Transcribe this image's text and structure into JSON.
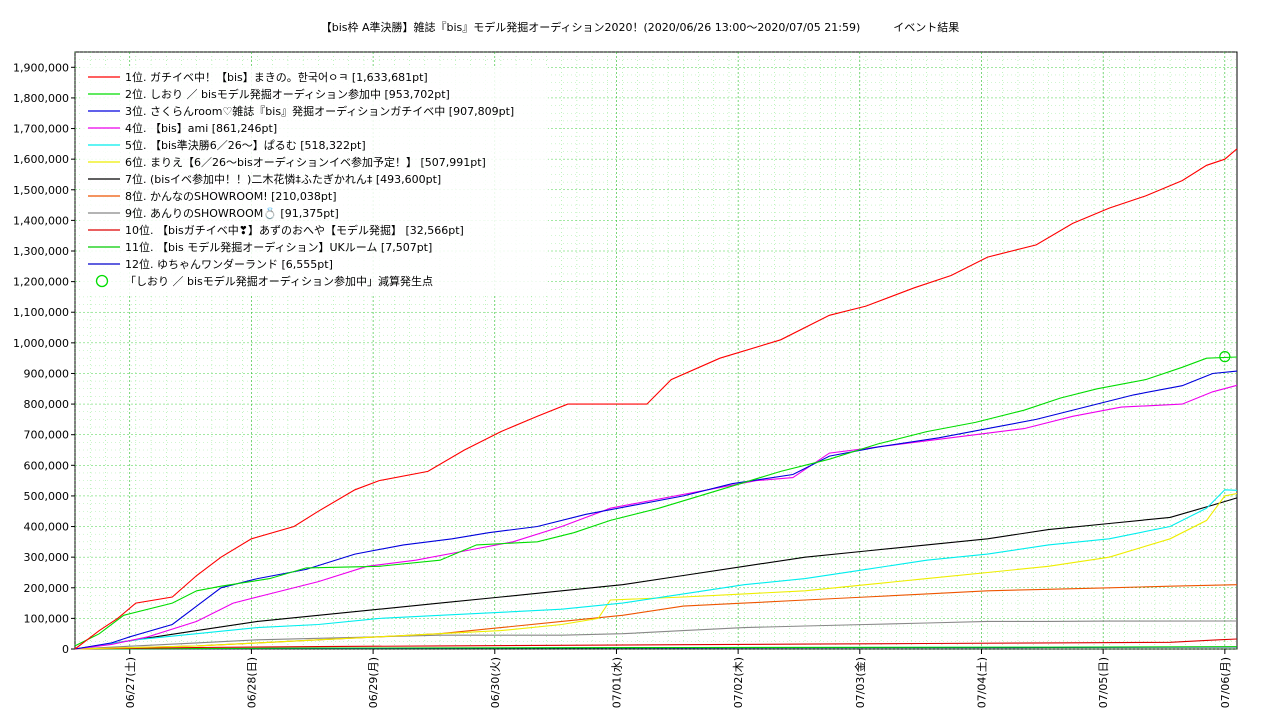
{
  "chart_title": "【bis枠 A準決勝】雑誌『bis』モデル発掘オーディション2020！(2020/06/26 13:00〜2020/07/05 21:59)　　　イベント結果",
  "chart_data": {
    "type": "line",
    "title": "【bis枠 A準決勝】雑誌『bis』モデル発掘オーディション2020！(2020/06/26 13:00〜2020/07/05 21:59)　　　イベント結果",
    "xlabel": "",
    "ylabel": "",
    "ylim": [
      0,
      1950000
    ],
    "xlim": [
      0,
      9.55
    ],
    "grid": true,
    "legend_position": "top-left",
    "y_ticks": [
      "0",
      "100,000",
      "200,000",
      "300,000",
      "400,000",
      "500,000",
      "600,000",
      "700,000",
      "800,000",
      "900,000",
      "1,000,000",
      "1,100,000",
      "1,200,000",
      "1,300,000",
      "1,400,000",
      "1,500,000",
      "1,600,000",
      "1,700,000",
      "1,800,000",
      "1,900,000"
    ],
    "x_ticks": [
      {
        "x": 0.45,
        "label": "06/27(土)"
      },
      {
        "x": 1.45,
        "label": "06/28(日)"
      },
      {
        "x": 2.45,
        "label": "06/29(月)"
      },
      {
        "x": 3.45,
        "label": "06/30(火)"
      },
      {
        "x": 4.45,
        "label": "07/01(水)"
      },
      {
        "x": 5.45,
        "label": "07/02(木)"
      },
      {
        "x": 6.45,
        "label": "07/03(金)"
      },
      {
        "x": 7.45,
        "label": "07/04(土)"
      },
      {
        "x": 8.45,
        "label": "07/05(日)"
      },
      {
        "x": 9.45,
        "label": "07/06(月)"
      }
    ],
    "series": [
      {
        "name": "1位. ガチイベ中！【bis】まきの。한국어ㅇㅋ [1,633,681pt]",
        "color": "#ff0000",
        "points": [
          [
            0,
            0
          ],
          [
            0.2,
            60000
          ],
          [
            0.35,
            100000
          ],
          [
            0.5,
            150000
          ],
          [
            0.8,
            170000
          ],
          [
            1.0,
            240000
          ],
          [
            1.2,
            300000
          ],
          [
            1.45,
            360000
          ],
          [
            1.8,
            400000
          ],
          [
            2.0,
            450000
          ],
          [
            2.3,
            520000
          ],
          [
            2.5,
            550000
          ],
          [
            2.9,
            580000
          ],
          [
            3.2,
            650000
          ],
          [
            3.5,
            710000
          ],
          [
            3.8,
            760000
          ],
          [
            4.05,
            800000
          ],
          [
            4.7,
            800000
          ],
          [
            4.9,
            880000
          ],
          [
            5.3,
            950000
          ],
          [
            5.8,
            1010000
          ],
          [
            6.2,
            1090000
          ],
          [
            6.5,
            1120000
          ],
          [
            6.9,
            1180000
          ],
          [
            7.2,
            1220000
          ],
          [
            7.5,
            1280000
          ],
          [
            7.9,
            1320000
          ],
          [
            8.2,
            1390000
          ],
          [
            8.5,
            1440000
          ],
          [
            8.8,
            1480000
          ],
          [
            9.1,
            1530000
          ],
          [
            9.3,
            1580000
          ],
          [
            9.45,
            1600000
          ],
          [
            9.55,
            1633681
          ]
        ]
      },
      {
        "name": "2位. しおり ／ bisモデル発掘オーディション参加中 [953,702pt]",
        "color": "#00dd00",
        "points": [
          [
            0,
            10000
          ],
          [
            0.2,
            50000
          ],
          [
            0.4,
            110000
          ],
          [
            0.8,
            150000
          ],
          [
            1.0,
            190000
          ],
          [
            1.2,
            205000
          ],
          [
            1.6,
            230000
          ],
          [
            1.9,
            265000
          ],
          [
            2.5,
            270000
          ],
          [
            3.0,
            290000
          ],
          [
            3.3,
            340000
          ],
          [
            3.8,
            350000
          ],
          [
            4.1,
            380000
          ],
          [
            4.4,
            420000
          ],
          [
            4.8,
            460000
          ],
          [
            5.3,
            520000
          ],
          [
            5.8,
            580000
          ],
          [
            6.2,
            620000
          ],
          [
            6.6,
            670000
          ],
          [
            7.0,
            710000
          ],
          [
            7.4,
            740000
          ],
          [
            7.8,
            780000
          ],
          [
            8.1,
            820000
          ],
          [
            8.4,
            850000
          ],
          [
            8.8,
            880000
          ],
          [
            9.1,
            920000
          ],
          [
            9.3,
            950000
          ],
          [
            9.55,
            953702
          ]
        ]
      },
      {
        "name": "3位. さくらんroom♡雑誌『bis』発掘オーディションガチイベ中 [907,809pt]",
        "color": "#0000dd",
        "points": [
          [
            0,
            0
          ],
          [
            0.3,
            20000
          ],
          [
            0.45,
            40000
          ],
          [
            0.8,
            80000
          ],
          [
            1.0,
            140000
          ],
          [
            1.2,
            200000
          ],
          [
            1.5,
            230000
          ],
          [
            1.9,
            260000
          ],
          [
            2.3,
            310000
          ],
          [
            2.7,
            340000
          ],
          [
            3.1,
            360000
          ],
          [
            3.4,
            380000
          ],
          [
            3.8,
            400000
          ],
          [
            4.2,
            440000
          ],
          [
            4.6,
            470000
          ],
          [
            5.0,
            500000
          ],
          [
            5.4,
            540000
          ],
          [
            5.9,
            570000
          ],
          [
            6.2,
            630000
          ],
          [
            6.6,
            660000
          ],
          [
            7.1,
            690000
          ],
          [
            7.5,
            720000
          ],
          [
            7.9,
            750000
          ],
          [
            8.3,
            790000
          ],
          [
            8.7,
            830000
          ],
          [
            9.1,
            860000
          ],
          [
            9.35,
            900000
          ],
          [
            9.55,
            907809
          ]
        ]
      },
      {
        "name": "4位. 【bis】ami [861,246pt]",
        "color": "#ee00ee",
        "points": [
          [
            0,
            0
          ],
          [
            0.3,
            15000
          ],
          [
            0.6,
            40000
          ],
          [
            1.0,
            90000
          ],
          [
            1.3,
            150000
          ],
          [
            1.6,
            180000
          ],
          [
            2.0,
            220000
          ],
          [
            2.4,
            270000
          ],
          [
            2.8,
            290000
          ],
          [
            3.2,
            320000
          ],
          [
            3.6,
            350000
          ],
          [
            4.0,
            400000
          ],
          [
            4.4,
            460000
          ],
          [
            4.8,
            490000
          ],
          [
            5.2,
            520000
          ],
          [
            5.6,
            550000
          ],
          [
            5.9,
            560000
          ],
          [
            6.2,
            640000
          ],
          [
            6.6,
            660000
          ],
          [
            7.0,
            680000
          ],
          [
            7.4,
            700000
          ],
          [
            7.8,
            720000
          ],
          [
            8.2,
            760000
          ],
          [
            8.6,
            790000
          ],
          [
            9.1,
            800000
          ],
          [
            9.35,
            840000
          ],
          [
            9.55,
            861246
          ]
        ]
      },
      {
        "name": "5位. 【bis準決勝6／26〜】ぱるむ [518,322pt]",
        "color": "#00eeee",
        "points": [
          [
            0,
            0
          ],
          [
            0.5,
            30000
          ],
          [
            1.0,
            50000
          ],
          [
            1.5,
            70000
          ],
          [
            2.0,
            80000
          ],
          [
            2.5,
            100000
          ],
          [
            3.0,
            110000
          ],
          [
            3.5,
            120000
          ],
          [
            4.0,
            130000
          ],
          [
            4.5,
            150000
          ],
          [
            5.0,
            180000
          ],
          [
            5.5,
            210000
          ],
          [
            6.0,
            230000
          ],
          [
            6.5,
            260000
          ],
          [
            7.0,
            290000
          ],
          [
            7.5,
            310000
          ],
          [
            8.0,
            340000
          ],
          [
            8.5,
            360000
          ],
          [
            9.0,
            400000
          ],
          [
            9.3,
            460000
          ],
          [
            9.45,
            520000
          ],
          [
            9.55,
            518322
          ]
        ]
      },
      {
        "name": "6位. まりえ【6／26〜bisオーディションイベ参加予定！】 [507,991pt]",
        "color": "#eeee00",
        "points": [
          [
            0,
            0
          ],
          [
            0.5,
            5000
          ],
          [
            1.0,
            10000
          ],
          [
            1.5,
            20000
          ],
          [
            2.0,
            30000
          ],
          [
            2.5,
            40000
          ],
          [
            3.0,
            50000
          ],
          [
            3.5,
            60000
          ],
          [
            4.0,
            80000
          ],
          [
            4.3,
            100000
          ],
          [
            4.4,
            160000
          ],
          [
            5.0,
            170000
          ],
          [
            5.5,
            180000
          ],
          [
            6.0,
            190000
          ],
          [
            6.5,
            210000
          ],
          [
            7.0,
            230000
          ],
          [
            7.5,
            250000
          ],
          [
            8.0,
            270000
          ],
          [
            8.5,
            300000
          ],
          [
            9.0,
            360000
          ],
          [
            9.3,
            420000
          ],
          [
            9.45,
            500000
          ],
          [
            9.55,
            507991
          ]
        ]
      },
      {
        "name": "7位. (bisイベ参加中！！)二木花憐‡ふたぎかれん‡ [493,600pt]",
        "color": "#000000",
        "points": [
          [
            0,
            0
          ],
          [
            0.5,
            30000
          ],
          [
            1.0,
            60000
          ],
          [
            1.5,
            90000
          ],
          [
            2.0,
            110000
          ],
          [
            2.5,
            130000
          ],
          [
            3.0,
            150000
          ],
          [
            3.5,
            170000
          ],
          [
            4.0,
            190000
          ],
          [
            4.5,
            210000
          ],
          [
            5.0,
            240000
          ],
          [
            5.5,
            270000
          ],
          [
            6.0,
            300000
          ],
          [
            6.5,
            320000
          ],
          [
            7.0,
            340000
          ],
          [
            7.5,
            360000
          ],
          [
            8.0,
            390000
          ],
          [
            8.5,
            410000
          ],
          [
            9.0,
            430000
          ],
          [
            9.35,
            470000
          ],
          [
            9.55,
            493600
          ]
        ]
      },
      {
        "name": "8位. かんなのSHOWROOM! [210,038pt]",
        "color": "#ee5500",
        "points": [
          [
            0,
            0
          ],
          [
            0.5,
            5000
          ],
          [
            1.0,
            10000
          ],
          [
            1.5,
            20000
          ],
          [
            2.0,
            30000
          ],
          [
            2.5,
            40000
          ],
          [
            3.0,
            50000
          ],
          [
            3.5,
            70000
          ],
          [
            4.0,
            90000
          ],
          [
            4.5,
            110000
          ],
          [
            5.0,
            140000
          ],
          [
            5.5,
            150000
          ],
          [
            6.0,
            160000
          ],
          [
            6.5,
            170000
          ],
          [
            7.0,
            180000
          ],
          [
            7.5,
            190000
          ],
          [
            8.0,
            195000
          ],
          [
            8.5,
            200000
          ],
          [
            9.0,
            205000
          ],
          [
            9.55,
            210038
          ]
        ]
      },
      {
        "name": "9位. あんりのSHOWROOM💍 [91,375pt]",
        "color": "#888888",
        "points": [
          [
            0,
            0
          ],
          [
            0.5,
            10000
          ],
          [
            1.0,
            20000
          ],
          [
            1.5,
            30000
          ],
          [
            2.0,
            35000
          ],
          [
            2.5,
            40000
          ],
          [
            3.0,
            45000
          ],
          [
            3.5,
            45000
          ],
          [
            4.0,
            45000
          ],
          [
            4.5,
            50000
          ],
          [
            5.0,
            60000
          ],
          [
            5.5,
            70000
          ],
          [
            6.0,
            75000
          ],
          [
            6.5,
            80000
          ],
          [
            7.0,
            85000
          ],
          [
            7.5,
            90000
          ],
          [
            8.0,
            90000
          ],
          [
            8.5,
            91000
          ],
          [
            9.55,
            91375
          ]
        ]
      },
      {
        "name": "10位. 【bisガチイベ中❣】あずのおへや【モデル発掘】 [32,566pt]",
        "color": "#dd0000",
        "points": [
          [
            0,
            0
          ],
          [
            1.0,
            5000
          ],
          [
            2.0,
            8000
          ],
          [
            3.0,
            10000
          ],
          [
            4.0,
            12000
          ],
          [
            5.0,
            14000
          ],
          [
            6.0,
            16000
          ],
          [
            7.0,
            18000
          ],
          [
            8.0,
            20000
          ],
          [
            9.0,
            22000
          ],
          [
            9.4,
            30000
          ],
          [
            9.55,
            32566
          ]
        ]
      },
      {
        "name": "11位. 【bis モデル発掘オーディション】UKルーム [7,507pt]",
        "color": "#00cc00",
        "points": [
          [
            0,
            0
          ],
          [
            2.0,
            3000
          ],
          [
            5.0,
            5000
          ],
          [
            8.0,
            6000
          ],
          [
            9.55,
            7507
          ]
        ]
      },
      {
        "name": "12位. ゆちゃんワンダーランド [6,555pt]",
        "color": "#0000cc",
        "points": [
          [
            0,
            0
          ],
          [
            2.0,
            2000
          ],
          [
            5.0,
            4000
          ],
          [
            8.0,
            5000
          ],
          [
            9.55,
            6555
          ]
        ]
      }
    ],
    "marker": {
      "name": "「しおり ／ bisモデル発掘オーディション参加中」減算発生点",
      "color": "#00dd00",
      "x": 9.45,
      "y": 955000
    }
  }
}
